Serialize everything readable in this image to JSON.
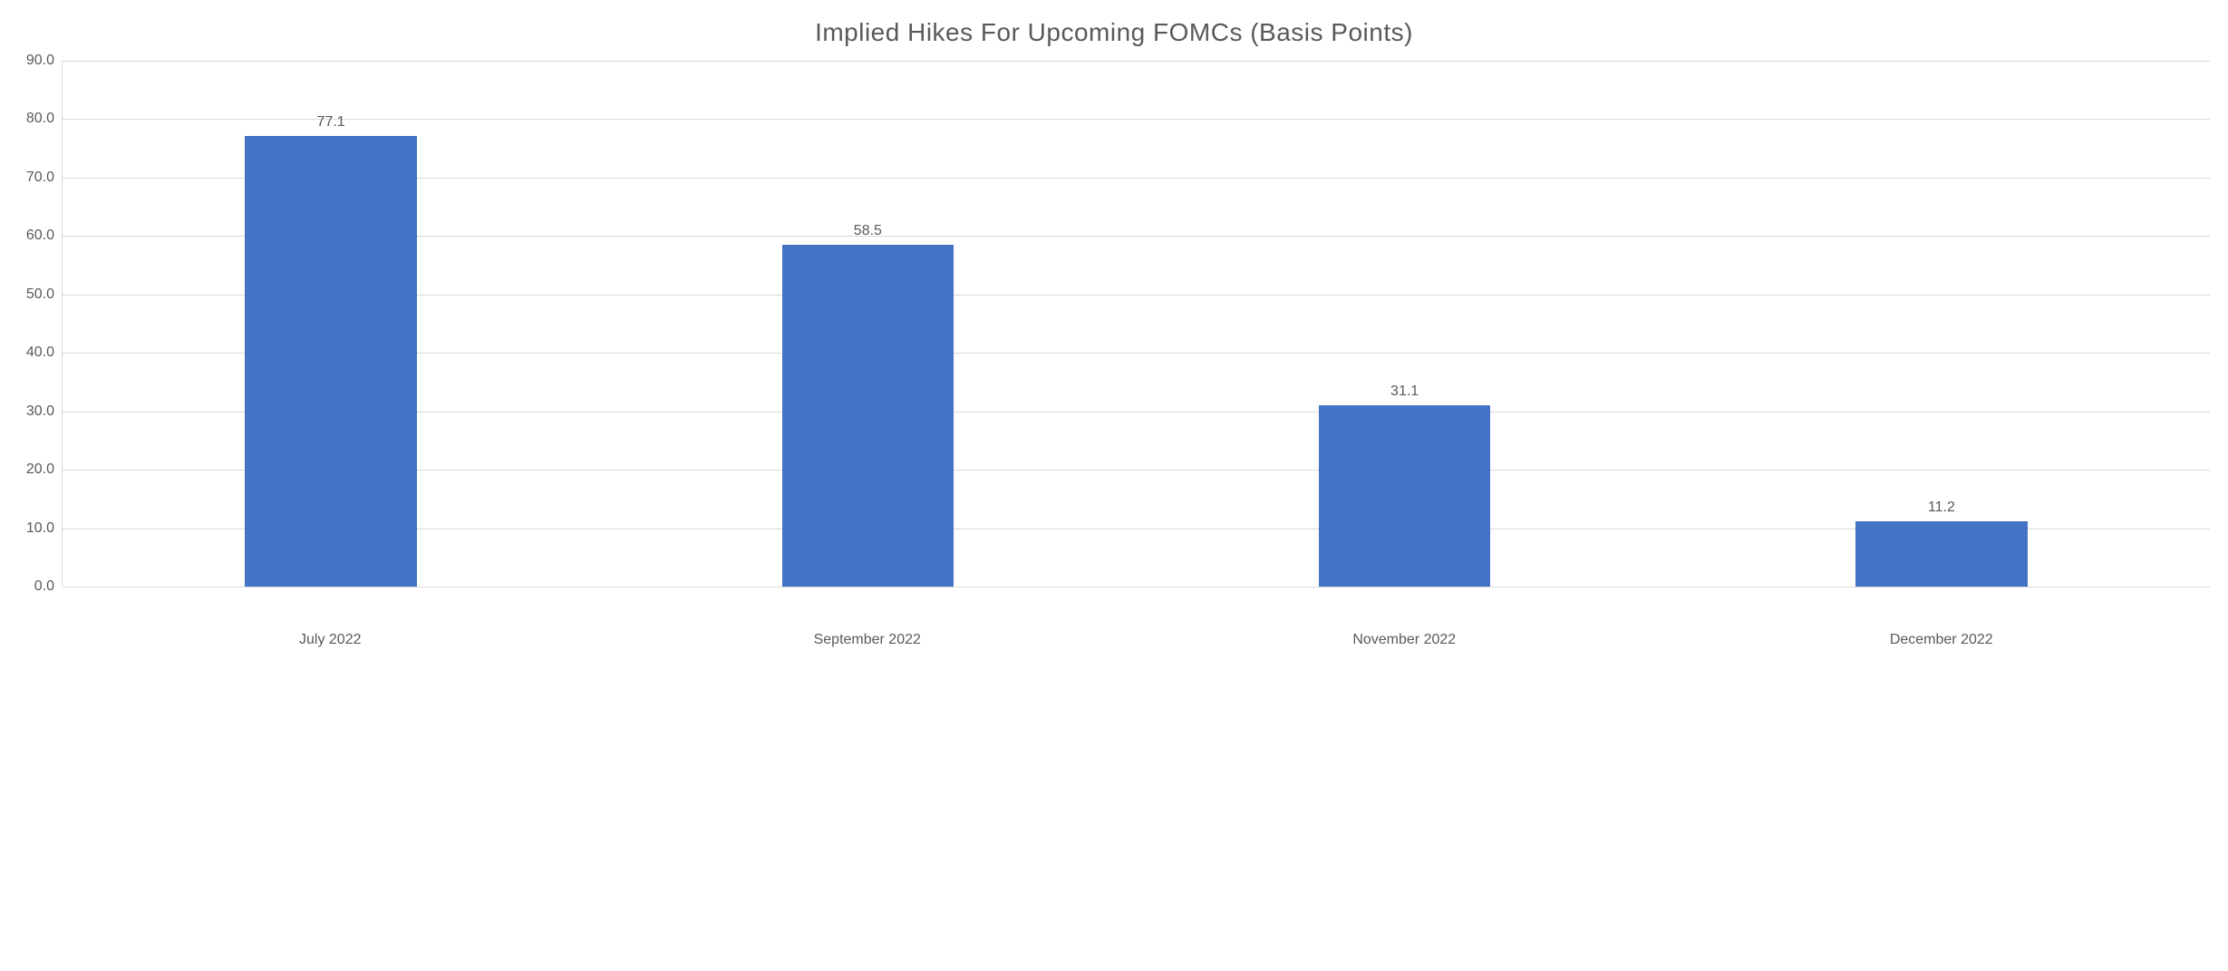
{
  "chart": {
    "type": "bar",
    "title": "Implied Hikes For Upcoming FOMCs (Basis Points)",
    "title_fontsize": 28,
    "title_color": "#595959",
    "categories": [
      "July 2022",
      "September 2022",
      "November 2022",
      "December 2022"
    ],
    "values": [
      77.1,
      58.5,
      31.1,
      11.2
    ],
    "value_labels": [
      "77.1",
      "58.5",
      "31.1",
      "11.2"
    ],
    "bar_color": "#4472c4",
    "ylim": [
      0.0,
      90.0
    ],
    "ytick_step": 10.0,
    "yticks": [
      "90.0",
      "80.0",
      "70.0",
      "60.0",
      "50.0",
      "40.0",
      "30.0",
      "20.0",
      "10.0",
      "0.0"
    ],
    "background_color": "#ffffff",
    "grid_color": "#d9d9d9",
    "axis_text_color": "#595959",
    "label_fontsize": 16,
    "bar_width": 0.32
  }
}
